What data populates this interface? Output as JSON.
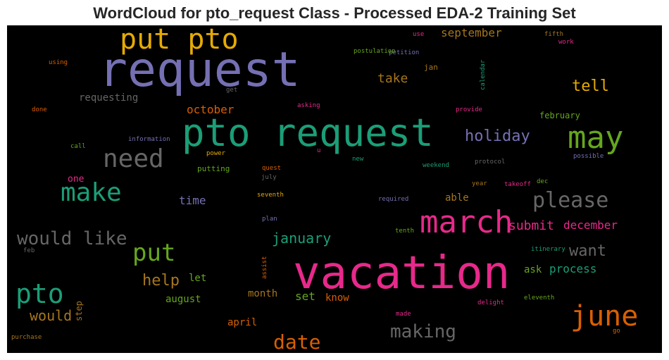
{
  "title": "WordCloud for pto_request Class - Processed EDA-2 Training Set",
  "colors": {
    "purple": "#7570b3",
    "green": "#1b9e77",
    "orange": "#d95f02",
    "pink": "#e7298a",
    "lime": "#66a61e",
    "gold": "#e6ab02",
    "brown": "#a6761d",
    "gray": "#666666"
  },
  "words": [
    "request",
    "put pto",
    "pto request",
    "vacation",
    "march",
    "june",
    "may",
    "need",
    "make",
    "please",
    "put",
    "would like",
    "pto",
    "date",
    "making",
    "holiday",
    "tell",
    "take",
    "september",
    "requesting",
    "october",
    "january",
    "submit",
    "december",
    "want",
    "help",
    "would",
    "ask",
    "process",
    "time",
    "august",
    "april",
    "month",
    "set",
    "know",
    "able",
    "step",
    "let",
    "one",
    "jan",
    "february",
    "postulation",
    "petition",
    "use",
    "fifth",
    "work",
    "using",
    "get",
    "calendar",
    "done",
    "asking",
    "provide",
    "information",
    "call",
    "power",
    "putting",
    "u",
    "new",
    "weekend",
    "protocol",
    "possible",
    "quest",
    "july",
    "year",
    "takeoff",
    "dec",
    "seventh",
    "required",
    "plan",
    "tenth",
    "itinerary",
    "feb",
    "assist",
    "delight",
    "eleventh",
    "made",
    "go",
    "purchase"
  ]
}
